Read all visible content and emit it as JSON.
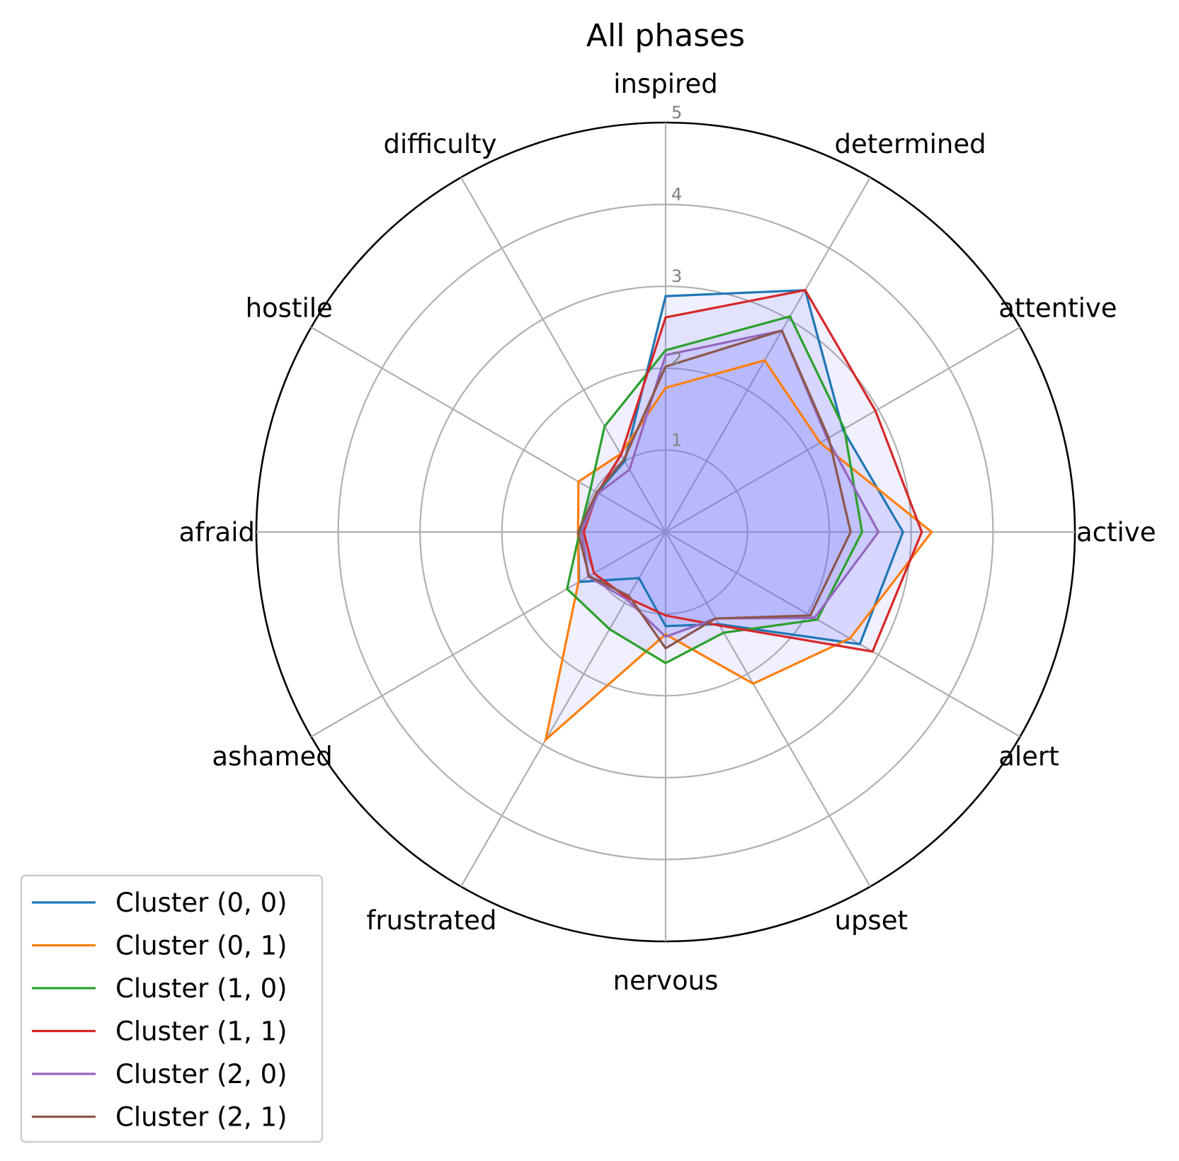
{
  "chart_data": {
    "type": "radar",
    "title": "All phases",
    "axes": [
      "inspired",
      "determined",
      "attentive",
      "active",
      "alert",
      "upset",
      "nervous",
      "frustrated",
      "ashamed",
      "afraid",
      "hostile",
      "difficulty"
    ],
    "rlim": [
      0,
      5
    ],
    "rticks": [
      1,
      2,
      3,
      4,
      5
    ],
    "grid": true,
    "legend_position": "lower-left",
    "series": [
      {
        "name": "Cluster (0, 0)",
        "color": "#1f77b4",
        "values": [
          2.88,
          3.41,
          2.5,
          2.9,
          2.74,
          1.3,
          1.15,
          0.65,
          1.22,
          1.07,
          0.96,
          1.0
        ]
      },
      {
        "name": "Cluster (0, 1)",
        "color": "#ff7f0e",
        "values": [
          1.76,
          2.42,
          2.18,
          3.25,
          2.6,
          2.14,
          1.25,
          2.93,
          1.23,
          1.07,
          1.23,
          1.1
        ]
      },
      {
        "name": "Cluster (1, 0)",
        "color": "#2ca02c",
        "values": [
          2.22,
          3.04,
          2.52,
          2.4,
          2.14,
          1.42,
          1.6,
          1.37,
          1.39,
          1.05,
          1.06,
          1.49
        ]
      },
      {
        "name": "Cluster (1, 1)",
        "color": "#d62728",
        "values": [
          2.62,
          3.41,
          2.96,
          3.13,
          2.92,
          1.32,
          1.02,
          0.93,
          1.01,
          1.0,
          0.96,
          1.09
        ]
      },
      {
        "name": "Cluster (2, 0)",
        "color": "#9467bd",
        "values": [
          2.16,
          2.84,
          2.28,
          2.6,
          2.1,
          1.22,
          1.28,
          0.95,
          1.09,
          1.03,
          0.95,
          0.88
        ]
      },
      {
        "name": "Cluster (2, 1)",
        "color": "#8c564b",
        "values": [
          2.02,
          2.84,
          2.3,
          2.26,
          2.04,
          1.22,
          1.42,
          0.9,
          1.08,
          1.07,
          0.97,
          1.02
        ]
      }
    ],
    "fill_color": "#6d6dff"
  }
}
